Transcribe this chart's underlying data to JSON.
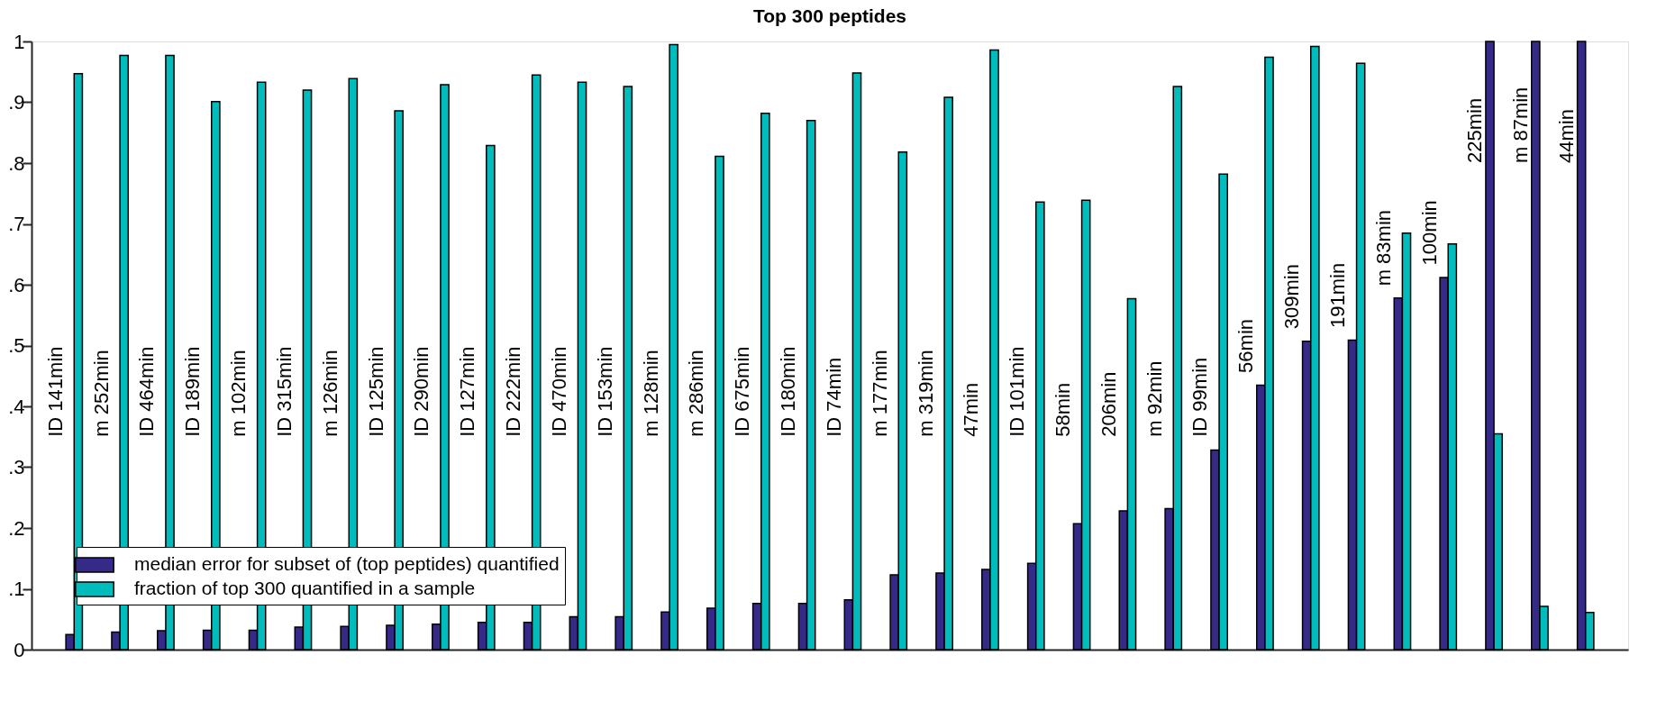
{
  "chart_data": {
    "type": "bar",
    "title": "Top 300 peptides",
    "categories": [
      null,
      null,
      null,
      null,
      null,
      null,
      null,
      null,
      null,
      null,
      null,
      null,
      null,
      null,
      null,
      null,
      null,
      null,
      null,
      null,
      null,
      null,
      null,
      null,
      null,
      null,
      null,
      null,
      null,
      null,
      null,
      null,
      null,
      null
    ],
    "series": [
      {
        "name": "median error for subset of (top peptides) quantified",
        "color": "#352a87",
        "values": [
          0.025,
          0.029,
          0.031,
          0.032,
          0.032,
          0.037,
          0.038,
          0.04,
          0.042,
          0.045,
          0.045,
          0.054,
          0.054,
          0.062,
          0.068,
          0.076,
          0.076,
          0.082,
          0.123,
          0.126,
          0.132,
          0.142,
          0.207,
          0.228,
          0.232,
          0.328,
          0.435,
          0.507,
          0.509,
          0.578,
          0.612,
          1,
          1,
          1
        ]
      },
      {
        "name": "fraction of top 300 quantified in a sample",
        "color": "#00bcbc",
        "values": [
          0.947,
          0.977,
          0.977,
          0.901,
          0.933,
          0.92,
          0.939,
          0.886,
          0.929,
          0.829,
          0.945,
          0.933,
          0.926,
          0.995,
          0.811,
          0.882,
          0.87,
          0.948,
          0.818,
          0.908,
          0.986,
          0.736,
          0.739,
          0.577,
          0.926,
          0.782,
          0.974,
          0.992,
          0.964,
          0.685,
          0.667,
          0.355,
          0.071,
          0.061
        ]
      }
    ],
    "ylim": [
      0,
      1
    ],
    "yticks": [
      0,
      {
        "value": 0.1,
        "label": ".1"
      },
      {
        "value": 0.2,
        "label": ".2"
      },
      {
        "value": 0.3,
        "label": ".3"
      },
      {
        "value": 0.4,
        "label": ".4"
      },
      {
        "value": 0.5,
        "label": ".5"
      },
      {
        "value": 0.6,
        "label": ".6"
      },
      {
        "value": 0.7,
        "label": ".7"
      },
      {
        "value": 0.8,
        "label": ".8"
      },
      {
        "value": 0.9,
        "label": ".9"
      },
      1
    ],
    "tick_labels": "y",
    "grid": false,
    "legend": "bottom left",
    "annotations": [
      "ID 141min",
      "m 252min",
      "ID 464min",
      "ID 189min",
      "m 102min",
      "ID 315min",
      "m 126min",
      "ID 125min",
      "ID 290min",
      "ID 127min",
      "ID 222min",
      "ID 470min",
      "ID 153min",
      "m 128min",
      "m 286min",
      "ID 675min",
      "ID 180min",
      "ID 74min",
      "m 177min",
      "m 319min",
      "47min",
      "ID 101min",
      "58min",
      "206min",
      "m 92min",
      "ID 99min",
      "56min",
      "309min",
      "191min",
      "m 83min",
      "100min",
      "225min",
      "m 87min",
      "44min"
    ]
  }
}
